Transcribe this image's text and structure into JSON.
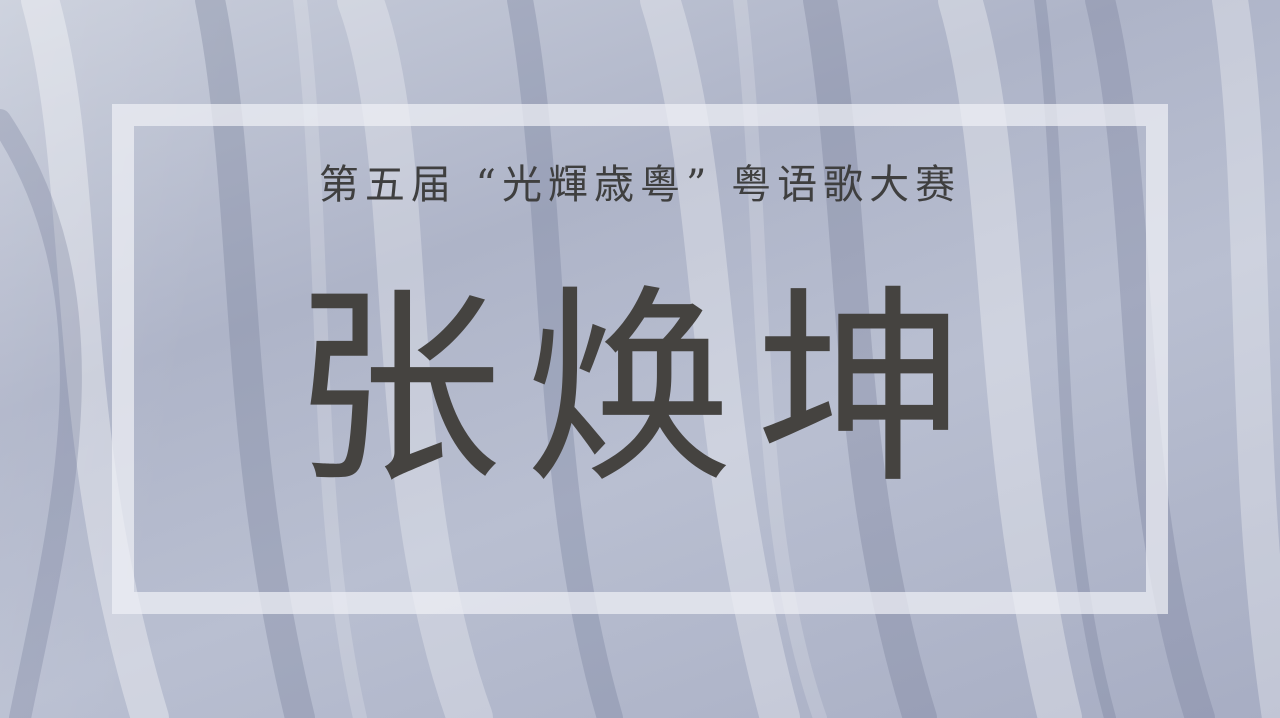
{
  "poster": {
    "subtitle": "第五届 “光輝歳粵” 粤语歌大赛",
    "name": "张焕坤"
  },
  "colors": {
    "background": "#b3b9cc",
    "frame": "#eef0f5",
    "text": "#454340"
  }
}
